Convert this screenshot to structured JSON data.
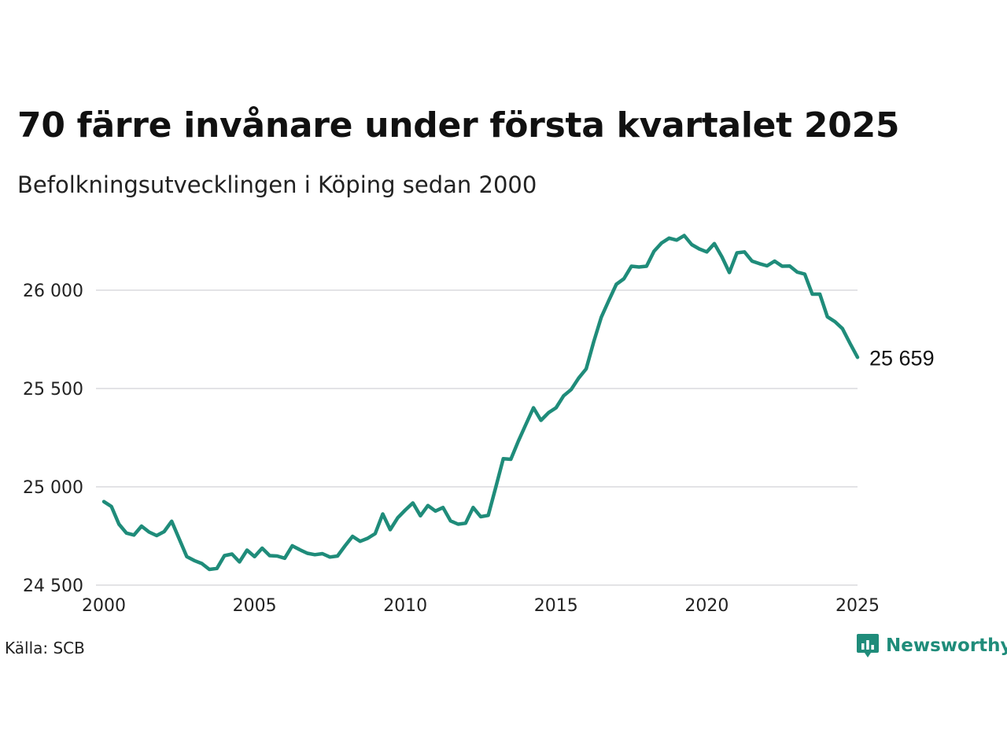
{
  "title": "70 färre invånare under första kvartalet 2025",
  "subtitle": "Befolkningsutvecklingen i Köping sedan 2000",
  "source": "Källa: SCB",
  "brand": {
    "name": "Newsworthy",
    "icon": "newsworthy-logo-icon",
    "color": "#1f8c7a"
  },
  "chart_data": {
    "type": "line",
    "title": "70 färre invånare under första kvartalet 2025",
    "subtitle": "Befolkningsutvecklingen i Köping sedan 2000",
    "xlabel": "",
    "ylabel": "",
    "xlim": [
      2000,
      2025
    ],
    "ylim": [
      24500,
      26300
    ],
    "grid": true,
    "line_color": "#1f8c7a",
    "grid_color": "#e3e3e6",
    "x_ticks": [
      2000,
      2005,
      2010,
      2015,
      2020,
      2025
    ],
    "x_tick_labels": [
      "2000",
      "2005",
      "2010",
      "2015",
      "2020",
      "2025"
    ],
    "y_ticks": [
      24500,
      25000,
      25500,
      26000
    ],
    "y_tick_labels": [
      "24 500",
      "25 000",
      "25 500",
      "26 000"
    ],
    "end_label": "25 659",
    "series": [
      {
        "x": [
          2000.0,
          2000.25,
          2000.5,
          2000.75,
          2001.0,
          2001.25,
          2001.5,
          2001.75,
          2002.0,
          2002.25,
          2002.5,
          2002.75,
          2003.0,
          2003.25,
          2003.5,
          2003.75,
          2004.0,
          2004.25,
          2004.5,
          2004.75,
          2005.0,
          2005.25,
          2005.5,
          2005.75,
          2006.0,
          2006.25,
          2006.5,
          2006.75,
          2007.0,
          2007.25,
          2007.5,
          2007.75,
          2008.0,
          2008.25,
          2008.5,
          2008.75,
          2009.0,
          2009.25,
          2009.5,
          2009.75,
          2010.0,
          2010.25,
          2010.5,
          2010.75,
          2011.0,
          2011.25,
          2011.5,
          2011.75,
          2012.0,
          2012.25,
          2012.5,
          2012.75,
          2013.0,
          2013.25,
          2013.5,
          2013.75,
          2014.0,
          2014.25,
          2014.5,
          2014.75,
          2015.0,
          2015.25,
          2015.5,
          2015.75,
          2016.0,
          2016.25,
          2016.5,
          2016.75,
          2017.0,
          2017.25,
          2017.5,
          2017.75,
          2018.0,
          2018.25,
          2018.5,
          2018.75,
          2019.0,
          2019.25,
          2019.5,
          2019.75,
          2020.0,
          2020.25,
          2020.5,
          2020.75,
          2021.0,
          2021.25,
          2021.5,
          2021.75,
          2022.0,
          2022.25,
          2022.5,
          2022.75,
          2023.0,
          2023.25,
          2023.5,
          2023.75,
          2024.0,
          2024.25,
          2024.5,
          2024.75,
          2025.0
        ],
        "values": [
          24925,
          24900,
          24810,
          24765,
          24755,
          24800,
          24770,
          24752,
          24772,
          24825,
          24735,
          24645,
          24625,
          24610,
          24580,
          24585,
          24650,
          24658,
          24618,
          24678,
          24645,
          24688,
          24650,
          24648,
          24637,
          24700,
          24680,
          24662,
          24655,
          24660,
          24643,
          24648,
          24700,
          24748,
          24723,
          24738,
          24762,
          24862,
          24782,
          24843,
          24882,
          24918,
          24853,
          24905,
          24877,
          24895,
          24827,
          24810,
          24815,
          24895,
          24848,
          24855,
          24998,
          25143,
          25140,
          25233,
          25318,
          25402,
          25338,
          25377,
          25402,
          25463,
          25495,
          25553,
          25600,
          25738,
          25863,
          25948,
          26030,
          26058,
          26122,
          26118,
          26122,
          26198,
          26240,
          26265,
          26255,
          26278,
          26232,
          26210,
          26195,
          26237,
          26170,
          26090,
          26190,
          26195,
          26148,
          26135,
          26124,
          26148,
          26122,
          26123,
          26092,
          26082,
          25980,
          25980,
          25865,
          25840,
          25805,
          25730,
          25659
        ]
      }
    ]
  }
}
